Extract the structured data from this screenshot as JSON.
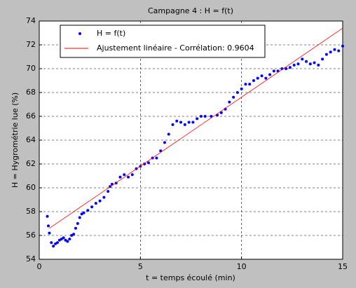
{
  "chart_data": {
    "type": "scatter",
    "title": "Campagne 4 : H = f(t)",
    "x_label": "t = temps écoulé (min)",
    "y_label": "H = Hygrométrie lue (%)",
    "xlim": [
      0,
      15
    ],
    "ylim": [
      54,
      74
    ],
    "xticks": [
      0,
      5,
      10,
      15
    ],
    "yticks": [
      54,
      56,
      58,
      60,
      62,
      64,
      66,
      68,
      70,
      72,
      74
    ],
    "grid": true,
    "legend": "top-left",
    "series": [
      {
        "name": "H = f(t)",
        "color": "#0000ff",
        "marker": "dot",
        "x": [
          0.4,
          0.45,
          0.5,
          0.6,
          0.7,
          0.8,
          0.9,
          1.0,
          1.1,
          1.2,
          1.3,
          1.4,
          1.5,
          1.6,
          1.7,
          1.8,
          1.9,
          2.0,
          2.1,
          2.2,
          2.4,
          2.6,
          2.8,
          3.0,
          3.2,
          3.4,
          3.5,
          3.6,
          3.8,
          4.0,
          4.2,
          4.4,
          4.6,
          4.8,
          5.0,
          5.2,
          5.4,
          5.6,
          5.8,
          6.0,
          6.2,
          6.4,
          6.6,
          6.8,
          7.0,
          7.2,
          7.4,
          7.6,
          7.8,
          8.0,
          8.2,
          8.5,
          8.8,
          9.0,
          9.2,
          9.4,
          9.6,
          9.8,
          10.0,
          10.2,
          10.4,
          10.6,
          10.8,
          11.0,
          11.2,
          11.4,
          11.6,
          11.8,
          12.0,
          12.2,
          12.4,
          12.6,
          12.8,
          13.0,
          13.2,
          13.4,
          13.6,
          13.8,
          14.0,
          14.2,
          14.4,
          14.6,
          14.8,
          15.0
        ],
        "values": [
          57.6,
          56.8,
          56.2,
          55.4,
          55.1,
          55.3,
          55.4,
          55.6,
          55.7,
          55.8,
          55.6,
          55.5,
          55.7,
          56.0,
          56.1,
          56.6,
          57.0,
          57.5,
          57.8,
          57.9,
          58.1,
          58.4,
          58.7,
          58.9,
          59.2,
          59.7,
          60.1,
          60.3,
          60.4,
          60.9,
          61.1,
          60.9,
          61.1,
          61.6,
          61.8,
          62.0,
          62.1,
          62.5,
          62.5,
          63.1,
          63.8,
          64.5,
          65.3,
          65.6,
          65.5,
          65.3,
          65.5,
          65.5,
          65.8,
          66.0,
          66.0,
          66.0,
          66.1,
          66.3,
          66.6,
          67.2,
          67.6,
          68.0,
          68.3,
          68.7,
          68.7,
          69.0,
          69.2,
          69.4,
          69.2,
          69.5,
          69.8,
          69.8,
          70.0,
          70.0,
          70.1,
          70.3,
          70.4,
          70.8,
          70.6,
          70.4,
          70.5,
          70.3,
          70.8,
          71.2,
          71.4,
          71.6,
          71.5,
          71.9
        ]
      },
      {
        "name": "Ajustement linéaire - Corrélation: 0.9604",
        "color": "#ff0000",
        "marker": "line",
        "x": [
          0.5,
          15
        ],
        "values": [
          56.6,
          73.4
        ]
      }
    ]
  }
}
